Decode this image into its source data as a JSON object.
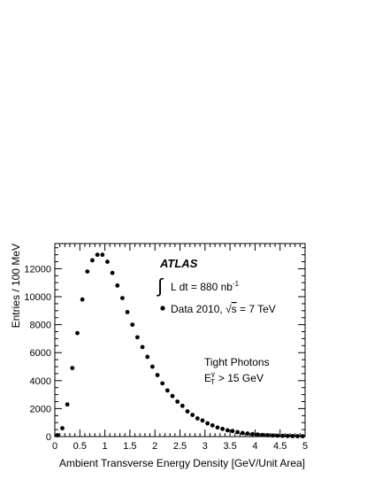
{
  "chart_data": {
    "type": "scatter",
    "xlabel": "Ambient Transverse Energy Density [GeV/Unit Area]",
    "ylabel": "Entries / 100 MeV",
    "xlim": [
      0,
      5
    ],
    "ylim": [
      0,
      13800
    ],
    "x_ticks": [
      "0",
      "0.5",
      "1",
      "1.5",
      "2",
      "2.5",
      "3",
      "3.5",
      "4",
      "4.5",
      "5"
    ],
    "y_ticks": [
      "0",
      "2000",
      "4000",
      "6000",
      "8000",
      "10000",
      "12000"
    ],
    "grid": false,
    "legend_position": "top-right",
    "annotations": {
      "experiment": "ATLAS",
      "lumi_prefix": "∫",
      "lumi_text": "L dt = 880 nb",
      "lumi_superscript": "-1",
      "data_label_prefix": "Data 2010,",
      "data_label_sqrt": "√",
      "data_label_s": "s",
      "data_label_suffix": "= 7 TeV",
      "selection_line1": "Tight Photons",
      "selection_line2_E": "E",
      "selection_line2_sup": "γ",
      "selection_line2_sub": "T",
      "selection_line2_rest": "> 15 GeV"
    },
    "series": [
      {
        "name": "Data 2010, √s = 7 TeV",
        "color": "#000000",
        "x": [
          0.05,
          0.15,
          0.25,
          0.35,
          0.45,
          0.55,
          0.65,
          0.75,
          0.85,
          0.95,
          1.05,
          1.15,
          1.25,
          1.35,
          1.45,
          1.55,
          1.65,
          1.75,
          1.85,
          1.95,
          2.05,
          2.15,
          2.25,
          2.35,
          2.45,
          2.55,
          2.65,
          2.75,
          2.85,
          2.95,
          3.05,
          3.15,
          3.25,
          3.35,
          3.45,
          3.55,
          3.65,
          3.75,
          3.85,
          3.95,
          4.05,
          4.15,
          4.25,
          4.35,
          4.45,
          4.55,
          4.65,
          4.75,
          4.85,
          4.95
        ],
        "y": [
          100,
          600,
          2300,
          4900,
          7400,
          9800,
          11800,
          12600,
          13000,
          13000,
          12500,
          11700,
          10800,
          9900,
          8900,
          8000,
          7100,
          6400,
          5700,
          5000,
          4400,
          3800,
          3300,
          2900,
          2500,
          2200,
          1800,
          1550,
          1300,
          1150,
          950,
          800,
          650,
          550,
          450,
          400,
          320,
          260,
          220,
          180,
          150,
          120,
          100,
          80,
          65,
          55,
          45,
          35,
          30,
          25
        ]
      }
    ]
  }
}
